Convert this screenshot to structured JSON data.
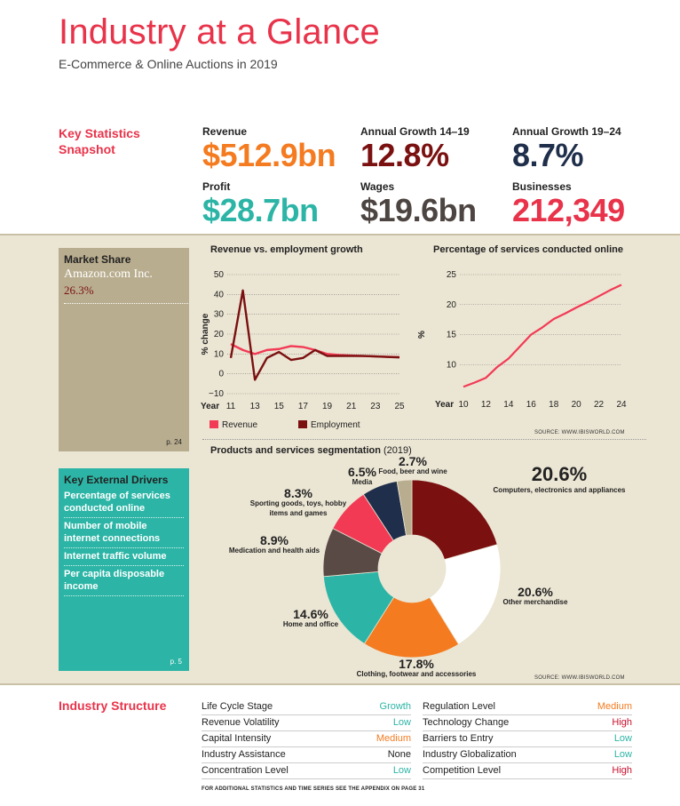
{
  "header": {
    "title": "Industry at a Glance",
    "subtitle": "E-Commerce & Online Auctions in 2019"
  },
  "key_statistics": {
    "label_line1": "Key Statistics",
    "label_line2": "Snapshot",
    "items": [
      {
        "label": "Revenue",
        "value": "$512.9bn",
        "color": "#f47b20"
      },
      {
        "label": "Annual Growth 14–19",
        "value": "12.8%",
        "color": "#7a1010"
      },
      {
        "label": "Annual Growth 19–24",
        "value": "8.7%",
        "color": "#1f2e4a"
      },
      {
        "label": "Profit",
        "value": "$28.7bn",
        "color": "#2cb5a6"
      },
      {
        "label": "Wages",
        "value": "$19.6bn",
        "color": "#4d4541"
      },
      {
        "label": "Businesses",
        "value": "212,349",
        "color": "#e8334a"
      }
    ]
  },
  "market_share": {
    "heading": "Market Share",
    "company": "Amazon.com Inc.",
    "share": "26.3%",
    "page_ref": "p. 24"
  },
  "key_external_drivers": {
    "heading": "Key External Drivers",
    "items": [
      "Percentage of services conducted online",
      "Number of mobile internet connections",
      "Internet traffic volume",
      "Per capita disposable income"
    ],
    "page_ref": "p. 5"
  },
  "chart_data": [
    {
      "type": "line",
      "title": "Revenue vs. employment growth",
      "ylabel": "% change",
      "xlabel": "Year",
      "ylim": [
        -10,
        50
      ],
      "yticks": [
        "50",
        "40",
        "30",
        "20",
        "10",
        "0",
        "−10"
      ],
      "xticks": [
        "11",
        "13",
        "15",
        "17",
        "19",
        "21",
        "23",
        "25"
      ],
      "x": [
        11,
        12,
        13,
        14,
        15,
        16,
        17,
        18,
        19,
        20,
        21,
        22,
        23,
        24,
        25
      ],
      "series": [
        {
          "name": "Revenue",
          "color": "#f23a55",
          "values": [
            15,
            12,
            10,
            12,
            12.5,
            14,
            13.5,
            12,
            10,
            9.5,
            9.2,
            9,
            8.8,
            8.6,
            8.4
          ]
        },
        {
          "name": "Employment",
          "color": "#7a1010",
          "values": [
            8,
            42,
            -3,
            8,
            11,
            7,
            8,
            12,
            9,
            9,
            9,
            9,
            8.8,
            8.5,
            8.3
          ]
        }
      ],
      "legend": [
        "Revenue",
        "Employment"
      ]
    },
    {
      "type": "line",
      "title": "Percentage of services conducted online",
      "ylabel": "%",
      "xlabel": "Year",
      "ylim": [
        5,
        25
      ],
      "yticks": [
        "25",
        "20",
        "15",
        "10"
      ],
      "xticks": [
        "10",
        "12",
        "14",
        "16",
        "18",
        "20",
        "22",
        "24"
      ],
      "x": [
        10,
        11,
        12,
        13,
        14,
        15,
        16,
        17,
        18,
        19,
        20,
        21,
        22,
        23,
        24
      ],
      "series": [
        {
          "name": "",
          "color": "#f23a55",
          "values": [
            6.3,
            7,
            7.8,
            9.6,
            11,
            13,
            15,
            16.2,
            17.6,
            18.5,
            19.5,
            20.4,
            21.4,
            22.4,
            23.3
          ]
        }
      ],
      "source": "SOURCE: WWW.IBISWORLD.COM"
    },
    {
      "type": "pie",
      "title": "Products and services segmentation",
      "title_year": "(2019)",
      "slices": [
        {
          "name": "Computers, electronics and appliances",
          "value": 20.6,
          "label": "20.6%",
          "color": "#7a1010"
        },
        {
          "name": "Other merchandise",
          "value": 20.6,
          "label": "20.6%",
          "color": "#ffffff"
        },
        {
          "name": "Clothing, footwear and accessories",
          "value": 17.8,
          "label": "17.8%",
          "color": "#f47b20"
        },
        {
          "name": "Home and office",
          "value": 14.6,
          "label": "14.6%",
          "color": "#2cb5a6"
        },
        {
          "name": "Medication and health aids",
          "value": 8.9,
          "label": "8.9%",
          "color": "#5a4a46"
        },
        {
          "name": "Sporting goods, toys, hobby items and games",
          "value": 8.3,
          "label": "8.3%",
          "color": "#f23a55"
        },
        {
          "name": "Media",
          "value": 6.5,
          "label": "6.5%",
          "color": "#1f2e4a"
        },
        {
          "name": "Food, beer and wine",
          "value": 2.7,
          "label": "2.7%",
          "color": "#b9ad8f"
        }
      ],
      "source": "SOURCE: WWW.IBISWORLD.COM"
    }
  ],
  "industry_structure": {
    "label": "Industry Structure",
    "left": [
      {
        "label": "Life Cycle Stage",
        "value": "Growth",
        "color": "#2cb5a6"
      },
      {
        "label": "Revenue Volatility",
        "value": "Low",
        "color": "#2cb5a6"
      },
      {
        "label": "Capital Intensity",
        "value": "Medium",
        "color": "#f47b20"
      },
      {
        "label": "Industry Assistance",
        "value": "None",
        "color": "#222222"
      },
      {
        "label": "Concentration Level",
        "value": "Low",
        "color": "#2cb5a6"
      }
    ],
    "right": [
      {
        "label": "Regulation Level",
        "value": "Medium",
        "color": "#f47b20"
      },
      {
        "label": "Technology Change",
        "value": "High",
        "color": "#c8102e"
      },
      {
        "label": "Barriers to Entry",
        "value": "Low",
        "color": "#2cb5a6"
      },
      {
        "label": "Industry Globalization",
        "value": "Low",
        "color": "#2cb5a6"
      },
      {
        "label": "Competition Level",
        "value": "High",
        "color": "#c8102e"
      }
    ],
    "footnote": "FOR ADDITIONAL STATISTICS AND TIME SERIES SEE THE APPENDIX ON PAGE 31"
  }
}
